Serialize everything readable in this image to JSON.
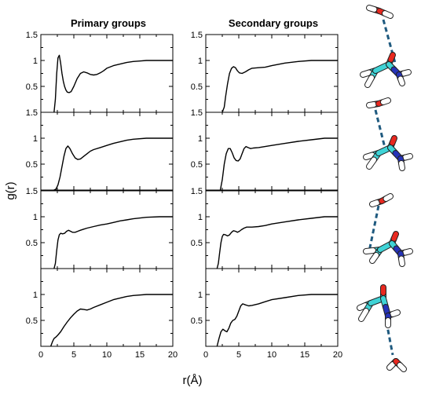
{
  "figure": {
    "ylabel": "g(r)",
    "xlabel": "r(Å)",
    "column_titles": [
      "Primary groups",
      "Secondary groups"
    ]
  },
  "colors": {
    "curve": "#000000",
    "carbon": "#3fd3d6",
    "oxygen": "#e8281f",
    "nitrogen": "#2633b8",
    "hydrogen": "#ffffff",
    "bond": "#1f5a7f"
  },
  "chart_data": [
    {
      "type": "line",
      "panel": "row1-primary",
      "title": "Primary groups",
      "xlabel": "",
      "ylabel": "",
      "xlim": [
        0,
        20
      ],
      "ylim": [
        0,
        1.5
      ],
      "xticks": [],
      "yticks": [
        0.5,
        1,
        1.5
      ],
      "x": [
        2.0,
        2.2,
        2.4,
        2.6,
        2.8,
        3.0,
        3.2,
        3.4,
        3.6,
        3.8,
        4.0,
        4.3,
        4.6,
        5.0,
        5.5,
        6.0,
        6.5,
        7.0,
        7.5,
        8.0,
        8.5,
        9.0,
        9.5,
        10.0,
        11.0,
        12.0,
        13.0,
        14.0,
        15.0,
        16.0,
        18.0,
        20.0
      ],
      "y": [
        0.0,
        0.25,
        0.75,
        1.05,
        1.1,
        0.95,
        0.75,
        0.6,
        0.5,
        0.43,
        0.39,
        0.38,
        0.4,
        0.5,
        0.65,
        0.75,
        0.78,
        0.76,
        0.73,
        0.72,
        0.73,
        0.76,
        0.8,
        0.85,
        0.9,
        0.93,
        0.96,
        0.98,
        0.99,
        1.0,
        1.0,
        1.0
      ]
    },
    {
      "type": "line",
      "panel": "row1-secondary",
      "title": "Secondary groups",
      "xlabel": "",
      "ylabel": "",
      "xlim": [
        0,
        20
      ],
      "ylim": [
        0,
        1.5
      ],
      "xticks": [],
      "yticks": [
        0.5,
        1,
        1.5
      ],
      "x": [
        2.5,
        2.8,
        3.0,
        3.3,
        3.6,
        3.9,
        4.2,
        4.5,
        4.8,
        5.1,
        5.5,
        6.0,
        6.5,
        7.0,
        8.0,
        9.0,
        10.0,
        12.0,
        14.0,
        16.0,
        18.0,
        20.0
      ],
      "y": [
        0.0,
        0.1,
        0.3,
        0.55,
        0.75,
        0.85,
        0.88,
        0.86,
        0.8,
        0.76,
        0.75,
        0.78,
        0.82,
        0.85,
        0.86,
        0.87,
        0.9,
        0.95,
        0.98,
        1.0,
        1.0,
        1.0
      ]
    },
    {
      "type": "line",
      "panel": "row2-primary",
      "xlabel": "",
      "ylabel": "",
      "xlim": [
        0,
        20
      ],
      "ylim": [
        0,
        1.5
      ],
      "xticks": [],
      "yticks": [
        0.5,
        1,
        1.5
      ],
      "x": [
        2.0,
        2.3,
        2.6,
        2.9,
        3.2,
        3.5,
        3.8,
        4.1,
        4.4,
        4.8,
        5.2,
        5.6,
        6.0,
        6.5,
        7.0,
        7.5,
        8.0,
        9.0,
        10.0,
        11.0,
        12.0,
        13.0,
        14.0,
        16.0,
        18.0,
        20.0
      ],
      "y": [
        0.0,
        0.02,
        0.1,
        0.25,
        0.45,
        0.65,
        0.8,
        0.85,
        0.8,
        0.7,
        0.62,
        0.59,
        0.6,
        0.65,
        0.7,
        0.75,
        0.78,
        0.82,
        0.86,
        0.9,
        0.93,
        0.96,
        0.98,
        1.0,
        1.0,
        1.0
      ]
    },
    {
      "type": "line",
      "panel": "row2-secondary",
      "xlabel": "",
      "ylabel": "",
      "xlim": [
        0,
        20
      ],
      "ylim": [
        0,
        1.5
      ],
      "xticks": [],
      "yticks": [
        0.5,
        1,
        1.5
      ],
      "x": [
        2.2,
        2.5,
        2.8,
        3.1,
        3.4,
        3.7,
        4.0,
        4.3,
        4.6,
        4.9,
        5.2,
        5.5,
        5.8,
        6.1,
        6.4,
        6.8,
        7.2,
        8.0,
        9.0,
        10.0,
        12.0,
        14.0,
        16.0,
        18.0,
        20.0
      ],
      "y": [
        0.0,
        0.2,
        0.5,
        0.7,
        0.8,
        0.8,
        0.72,
        0.62,
        0.57,
        0.56,
        0.6,
        0.7,
        0.8,
        0.84,
        0.82,
        0.8,
        0.81,
        0.82,
        0.84,
        0.86,
        0.9,
        0.94,
        0.97,
        1.0,
        1.0
      ]
    },
    {
      "type": "line",
      "panel": "row3-primary",
      "xlabel": "",
      "ylabel": "",
      "xlim": [
        0,
        20
      ],
      "ylim": [
        0,
        1.5
      ],
      "xticks": [],
      "yticks": [
        0.5,
        1,
        1.5
      ],
      "x": [
        2.0,
        2.2,
        2.4,
        2.6,
        2.8,
        3.0,
        3.3,
        3.6,
        3.9,
        4.2,
        4.5,
        4.8,
        5.2,
        5.6,
        6.0,
        6.5,
        7.0,
        8.0,
        9.0,
        10.0,
        11.0,
        12.0,
        13.0,
        14.0,
        16.0,
        18.0,
        20.0
      ],
      "y": [
        0.0,
        0.1,
        0.35,
        0.55,
        0.65,
        0.68,
        0.67,
        0.68,
        0.72,
        0.74,
        0.72,
        0.7,
        0.7,
        0.72,
        0.74,
        0.76,
        0.78,
        0.81,
        0.84,
        0.86,
        0.89,
        0.92,
        0.94,
        0.96,
        0.99,
        1.0,
        1.0
      ]
    },
    {
      "type": "line",
      "panel": "row3-secondary",
      "xlabel": "",
      "ylabel": "",
      "xlim": [
        0,
        20
      ],
      "ylim": [
        0,
        1.5
      ],
      "xticks": [],
      "yticks": [
        0.5,
        1,
        1.5
      ],
      "x": [
        1.7,
        1.9,
        2.1,
        2.3,
        2.5,
        2.7,
        3.0,
        3.3,
        3.6,
        3.9,
        4.2,
        4.5,
        4.8,
        5.1,
        5.4,
        5.8,
        6.2,
        6.6,
        7.0,
        8.0,
        9.0,
        10.0,
        12.0,
        14.0,
        16.0,
        18.0,
        20.0
      ],
      "y": [
        0.0,
        0.1,
        0.3,
        0.5,
        0.62,
        0.66,
        0.65,
        0.63,
        0.65,
        0.7,
        0.73,
        0.72,
        0.7,
        0.72,
        0.75,
        0.78,
        0.8,
        0.8,
        0.8,
        0.81,
        0.83,
        0.86,
        0.9,
        0.94,
        0.97,
        1.0,
        1.0
      ]
    },
    {
      "type": "line",
      "panel": "row4-primary",
      "xlabel": "",
      "ylabel": "",
      "xlim": [
        0,
        20
      ],
      "ylim": [
        0,
        1.5
      ],
      "xticks": [
        0,
        5,
        10,
        15,
        20
      ],
      "yticks": [
        0.5,
        1
      ],
      "x": [
        1.5,
        1.8,
        2.0,
        2.3,
        2.6,
        3.0,
        3.5,
        4.0,
        4.5,
        5.0,
        5.5,
        6.0,
        6.5,
        7.0,
        7.5,
        8.0,
        9.0,
        10.0,
        11.0,
        12.0,
        13.0,
        14.0,
        16.0,
        18.0,
        20.0
      ],
      "y": [
        0.0,
        0.1,
        0.15,
        0.18,
        0.22,
        0.28,
        0.38,
        0.47,
        0.55,
        0.62,
        0.68,
        0.72,
        0.71,
        0.7,
        0.72,
        0.75,
        0.8,
        0.85,
        0.9,
        0.93,
        0.96,
        0.98,
        1.0,
        1.0,
        1.0
      ]
    },
    {
      "type": "line",
      "panel": "row4-secondary",
      "xlabel": "",
      "ylabel": "",
      "xlim": [
        0,
        20
      ],
      "ylim": [
        0,
        1.5
      ],
      "xticks": [
        0,
        5,
        10,
        15,
        20
      ],
      "yticks": [
        0.5,
        1
      ],
      "x": [
        1.7,
        2.0,
        2.3,
        2.6,
        2.9,
        3.2,
        3.5,
        3.8,
        4.1,
        4.4,
        4.7,
        5.0,
        5.3,
        5.6,
        6.0,
        6.5,
        7.0,
        8.0,
        9.0,
        10.0,
        12.0,
        14.0,
        16.0,
        18.0,
        20.0
      ],
      "y": [
        0.0,
        0.15,
        0.28,
        0.33,
        0.3,
        0.28,
        0.35,
        0.45,
        0.5,
        0.52,
        0.58,
        0.68,
        0.78,
        0.82,
        0.8,
        0.78,
        0.79,
        0.82,
        0.86,
        0.9,
        0.94,
        0.98,
        1.0,
        1.0,
        1.0
      ]
    }
  ]
}
